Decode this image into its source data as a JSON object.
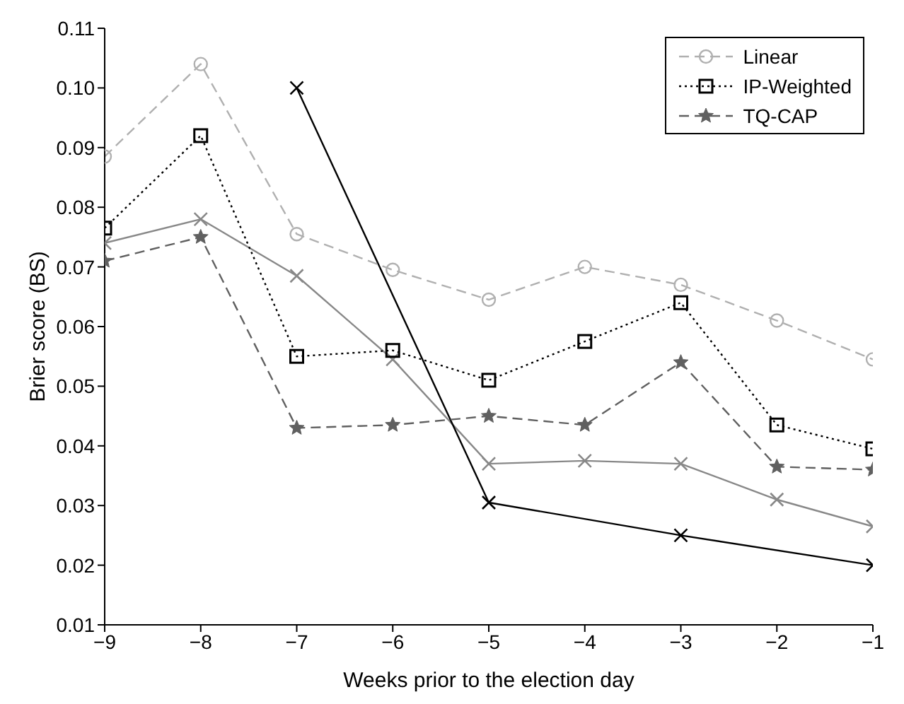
{
  "chart_data": {
    "type": "line",
    "xlabel": "Weeks prior to the election day",
    "ylabel": "Brier score (BS)",
    "x": [
      -9,
      -8,
      -7,
      -6,
      -5,
      -4,
      -3,
      -2,
      -1
    ],
    "series": [
      {
        "color": "#888888",
        "marker": "cross",
        "line_style": "solid",
        "values": [
          0.074,
          0.078,
          0.0685,
          0.0545,
          0.037,
          0.0375,
          0.037,
          0.031,
          0.0265
        ]
      },
      {
        "color": "#000000",
        "marker": "cross",
        "line_style": "solid",
        "x": [
          -7,
          -5,
          -3,
          -1
        ],
        "values": [
          0.1,
          0.0305,
          0.025,
          0.02
        ]
      },
      {
        "name": "Linear",
        "color": "#b0b0b0",
        "marker": "circle",
        "line_style": "dashed",
        "values": [
          0.0885,
          0.104,
          0.0755,
          0.0695,
          0.0645,
          0.07,
          0.067,
          0.061,
          0.0545
        ]
      },
      {
        "name": "IP-Weighted",
        "color": "#000000",
        "marker": "square",
        "line_style": "dotted",
        "values": [
          0.0765,
          0.092,
          0.055,
          0.056,
          0.051,
          0.0575,
          0.064,
          0.0435,
          0.0395
        ]
      },
      {
        "name": "TQ-CAP",
        "color": "#606060",
        "marker": "star",
        "line_style": "dashed",
        "values": [
          0.071,
          0.075,
          0.043,
          0.0435,
          0.045,
          0.0435,
          0.054,
          0.0365,
          0.036
        ]
      }
    ],
    "xlim": [
      -9,
      -1
    ],
    "xticks": [
      {
        "value": -9,
        "label": "−9"
      },
      {
        "value": -8,
        "label": "−8"
      },
      {
        "value": -7,
        "label": "−7"
      },
      {
        "value": -6,
        "label": "−6"
      },
      {
        "value": -5,
        "label": "−5"
      },
      {
        "value": -4,
        "label": "−4"
      },
      {
        "value": -3,
        "label": "−3"
      },
      {
        "value": -2,
        "label": "−2"
      },
      {
        "value": -1,
        "label": "−1"
      }
    ],
    "ylim": [
      0.01,
      0.11
    ],
    "yticks": [
      {
        "value": 0.01,
        "label": "0.01"
      },
      {
        "value": 0.02,
        "label": "0.02"
      },
      {
        "value": 0.03,
        "label": "0.03"
      },
      {
        "value": 0.04,
        "label": "0.04"
      },
      {
        "value": 0.05,
        "label": "0.05"
      },
      {
        "value": 0.06,
        "label": "0.06"
      },
      {
        "value": 0.07,
        "label": "0.07"
      },
      {
        "value": 0.08,
        "label": "0.08"
      },
      {
        "value": 0.09,
        "label": "0.09"
      },
      {
        "value": 0.1,
        "label": "0.10"
      },
      {
        "value": 0.11,
        "label": "0.11"
      }
    ],
    "grid": false,
    "legend": "top right"
  }
}
